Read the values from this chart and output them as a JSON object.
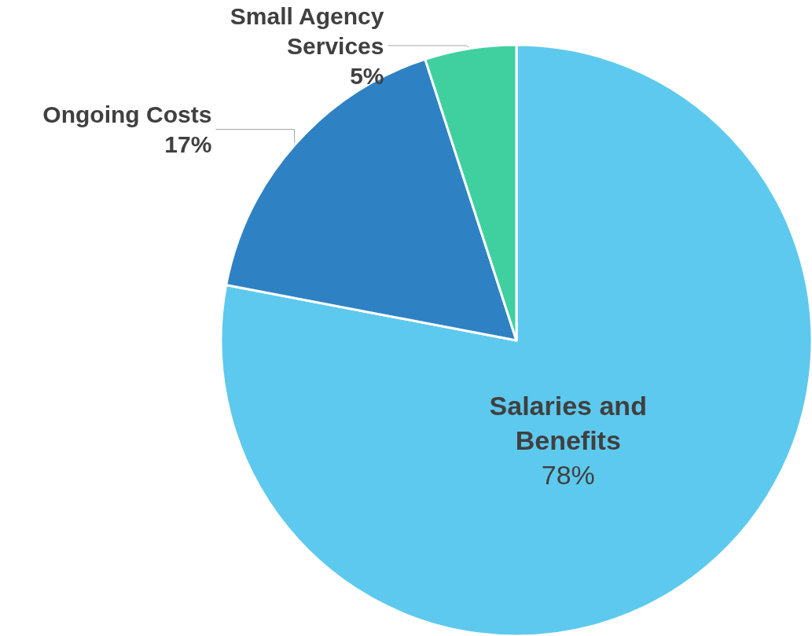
{
  "chart_data": {
    "type": "pie",
    "categories": [
      "Salaries and Benefits",
      "Ongoing Costs",
      "Small Agency Services"
    ],
    "values": [
      78,
      17,
      5
    ],
    "colors": [
      "#5ec9ee",
      "#2e82c3",
      "#40d0a0"
    ],
    "value_labels": [
      "78%",
      "17%",
      "5%"
    ]
  }
}
